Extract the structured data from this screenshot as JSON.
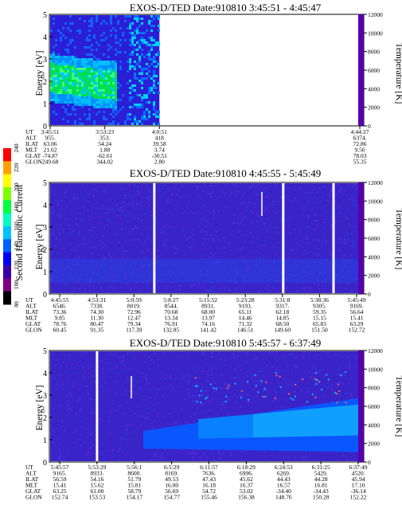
{
  "chart_data": [
    {
      "type": "heatmap",
      "title": "EXOS-D/TED   Date:910810  3:45:51 - 4:45:47",
      "ylabel": "Energy [eV]",
      "ylim": [
        0,
        5
      ],
      "yticks": [
        "0",
        "1",
        "2",
        "3",
        "4",
        "5"
      ],
      "y2label": "Temperature [K]",
      "y2lim": [
        0,
        12000
      ],
      "y2ticks": [
        "0",
        "2000",
        "4000",
        "6000",
        "8000",
        "10000",
        "12000"
      ],
      "data_coverage": [
        0,
        0.35
      ],
      "orbit": {
        "row_labels": [
          "UT",
          "ALT",
          "ILAT",
          "MLT",
          "GLAT",
          "GLON"
        ],
        "columns": [
          {
            "UT": "3:45:51",
            "ALT": "955.",
            "ILAT": "63.06",
            "MLT": "21.62",
            "GLAT": "-74.87",
            "GLON": "249.68"
          },
          {
            "UT": "3:53:23",
            "ALT": "353.",
            "ILAT": "54.24",
            "MLT": "1.88",
            "GLAT": "-62.61",
            "GLON": "344.02"
          },
          {
            "UT": "4:0:51",
            "ALT": "418",
            "ILAT": "39.58",
            "MLT": "3.74",
            "GLAT": "-30.51",
            "GLON": "2.80"
          },
          {
            "UT": "4:44:27",
            "ALT": "6374.",
            "ILAT": "72.86",
            "MLT": "9.56",
            "GLAT": "78.03",
            "GLON": "55.35"
          }
        ]
      }
    },
    {
      "type": "heatmap",
      "title": "EXOS-D/TED   Date:910810  4:45:55 - 5:45:49",
      "ylabel": "Energy [eV]",
      "ylim": [
        0,
        5
      ],
      "yticks": [
        "0",
        "1",
        "2",
        "3",
        "4",
        "5"
      ],
      "y2label": "Temperature [K]",
      "y2lim": [
        0,
        12000
      ],
      "y2ticks": [
        "0",
        "2000",
        "4000",
        "6000",
        "8000",
        "10000",
        "12000"
      ],
      "data_gaps": [
        0.33,
        0.74,
        0.9
      ],
      "orbit": {
        "row_labels": [
          "UT",
          "ALT",
          "ILAT",
          "MLT",
          "GLAT",
          "GLON"
        ],
        "columns": [
          {
            "UT": "4:45:55",
            "ALT": "6546.",
            "ILAT": "73.36",
            "MLT": "9.85",
            "GLAT": "78.76",
            "GLON": "60.45"
          },
          {
            "UT": "4:53:31",
            "ALT": "7338.",
            "ILAT": "74.30",
            "MLT": "11.30",
            "GLAT": "80.47",
            "GLON": "91.35"
          },
          {
            "UT": "5:0:59",
            "ALT": "8019.",
            "ILAT": "72.96",
            "MLT": "12.47",
            "GLAT": "79.34",
            "GLON": "117.39"
          },
          {
            "UT": "5:8:27",
            "ALT": "8544.",
            "ILAT": "70.68",
            "MLT": "13.34",
            "GLAT": "76.91",
            "GLON": "132.85"
          },
          {
            "UT": "5:15:52",
            "ALT": "8931.",
            "ILAT": "68.00",
            "MLT": "13.97",
            "GLAT": "74.16",
            "GLON": "141.42"
          },
          {
            "UT": "5:23:28",
            "ALT": "9193.",
            "ILAT": "65.11",
            "MLT": "14.46",
            "GLAT": "71.32",
            "GLON": "146.51"
          },
          {
            "UT": "5:31:8",
            "ALT": "9317.",
            "ILAT": "62.18",
            "MLT": "14.85",
            "GLAT": "68.50",
            "GLON": "149.60"
          },
          {
            "UT": "5:38:36",
            "ALT": "9305.",
            "ILAT": "59.35",
            "MLT": "15.15",
            "GLAT": "65.83",
            "GLON": "151.50"
          },
          {
            "UT": "5:45:49",
            "ALT": "9169.",
            "ILAT": "56.64",
            "MLT": "15.41",
            "GLAT": "63.29",
            "GLON": "152.72"
          }
        ]
      }
    },
    {
      "type": "heatmap",
      "title": "EXOS-D/TED   Date:910810  5:45:57 - 6:37:49",
      "ylabel": "Energy [eV]",
      "ylim": [
        0,
        5
      ],
      "yticks": [
        "0",
        "1",
        "2",
        "3",
        "4",
        "5"
      ],
      "y2label": "Temperature [K]",
      "y2lim": [
        0,
        12000
      ],
      "y2ticks": [
        "0",
        "2000",
        "4000",
        "6000",
        "8000",
        "10000",
        "12000"
      ],
      "data_gaps": [
        0.125
      ],
      "orbit": {
        "row_labels": [
          "UT",
          "ALT",
          "ILAT",
          "MLT",
          "GLAT",
          "GLON"
        ],
        "columns": [
          {
            "UT": "5:45:57",
            "ALT": "9165.",
            "ILAT": "56.59",
            "MLT": "15.41",
            "GLAT": "63.25",
            "GLON": "152.74"
          },
          {
            "UT": "5:53:29",
            "ALT": "8933.",
            "ILAT": "54.16",
            "MLT": "15.62",
            "GLAT": "61.00",
            "GLON": "153.53"
          },
          {
            "UT": "5:56:1",
            "ALT": "8600.",
            "ILAT": "51.79",
            "MLT": "15.81",
            "GLAT": "58.79",
            "GLON": "154.17"
          },
          {
            "UT": "6:5:29",
            "ALT": "8169.",
            "ILAT": "49.53",
            "MLT": "16.00",
            "GLAT": "56.69",
            "GLON": "154.77"
          },
          {
            "UT": "6:11:57",
            "ALT": "7636.",
            "ILAT": "47.43",
            "MLT": "16.18",
            "GLAT": "54.72",
            "GLON": "155.46"
          },
          {
            "UT": "6:18:29",
            "ALT": "6996.",
            "ILAT": "45.62",
            "MLT": "16.37",
            "GLAT": "53.02",
            "GLON": "156.38"
          },
          {
            "UT": "6:24:53",
            "ALT": "6269.",
            "ILAT": "44.43",
            "MLT": "16.57",
            "GLAT": "-34.40",
            "GLON": "148.76"
          },
          {
            "UT": "6:31:25",
            "ALT": "5429.",
            "ILAT": "44.28",
            "MLT": "16.81",
            "GLAT": "-34.43",
            "GLON": "150.28"
          },
          {
            "UT": "6:37:49",
            "ALT": "4520.",
            "ILAT": "45.94",
            "MLT": "17.10",
            "GLAT": "-36.14",
            "GLON": "152.22"
          }
        ]
      }
    }
  ],
  "colorbar": {
    "label": "Second Harmonic Current",
    "ticks": [
      "80",
      "100",
      "120",
      "140",
      "160",
      "180",
      "200",
      "220",
      "240"
    ],
    "range": [
      80,
      240
    ],
    "colors": [
      "#000000",
      "#7f007f",
      "#3a00a8",
      "#0000ff",
      "#0060ff",
      "#00c0ff",
      "#00ffc0",
      "#00ff40",
      "#80ff00",
      "#ffff00",
      "#ffa000",
      "#ff0000"
    ]
  }
}
